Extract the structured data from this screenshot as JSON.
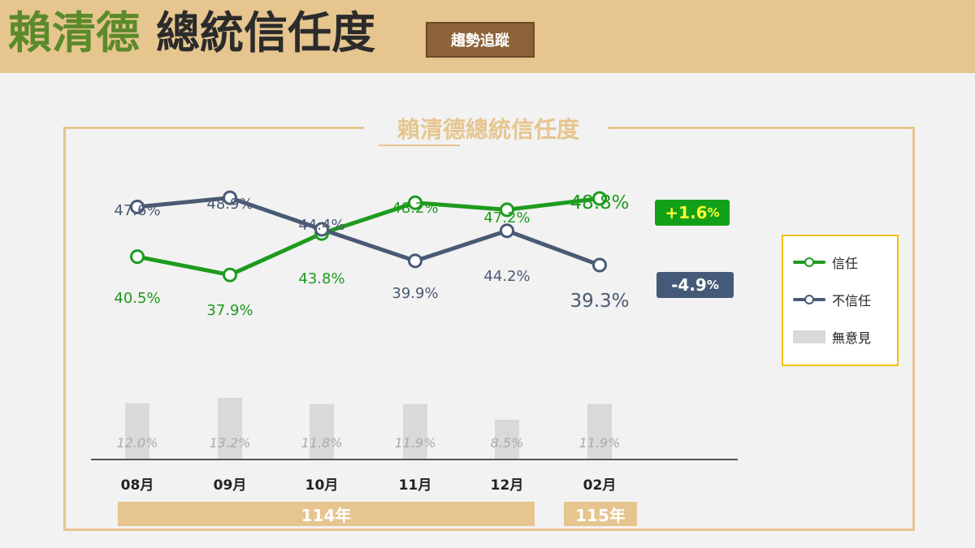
{
  "header": {
    "title_highlight": "賴清德",
    "title_rest": "總統信任度",
    "badge": "趨勢追蹤"
  },
  "chart_data": {
    "type": "line",
    "title": "賴清德總統信任度",
    "categories": [
      "08月",
      "09月",
      "10月",
      "11月",
      "12月",
      "02月"
    ],
    "series": [
      {
        "name": "信任",
        "color": "#1e9b1e",
        "values": [
          40.5,
          37.9,
          43.8,
          48.2,
          47.2,
          48.8
        ],
        "labels": [
          "40.5%",
          "37.9%",
          "43.8%",
          "48.2%",
          "47.2%",
          "48.8%"
        ]
      },
      {
        "name": "不信任",
        "color": "#4a5a75",
        "values": [
          47.6,
          48.9,
          44.4,
          39.9,
          44.2,
          39.3
        ],
        "labels": [
          "47.6%",
          "48.9%",
          "44.4%",
          "39.9%",
          "44.2%",
          "39.3%"
        ]
      },
      {
        "name": "無意見",
        "type": "bar",
        "color": "#d9d9d9",
        "values": [
          12.0,
          13.2,
          11.8,
          11.9,
          8.5,
          11.9
        ],
        "labels": [
          "12.0%",
          "13.2%",
          "11.8%",
          "11.9%",
          "8.5%",
          "11.9%"
        ]
      }
    ],
    "changes": {
      "trust": {
        "sign": "+1.6",
        "unit": "%"
      },
      "distrust": {
        "sign": "-4.9",
        "unit": "%"
      }
    },
    "year_groups": [
      {
        "label": "114年",
        "months": [
          "08月",
          "09月",
          "10月",
          "11月",
          "12月"
        ]
      },
      {
        "label": "115年",
        "months": [
          "02月"
        ]
      }
    ],
    "legend": {
      "placement": "right",
      "items": [
        "信任",
        "不信任",
        "無意見"
      ]
    }
  }
}
